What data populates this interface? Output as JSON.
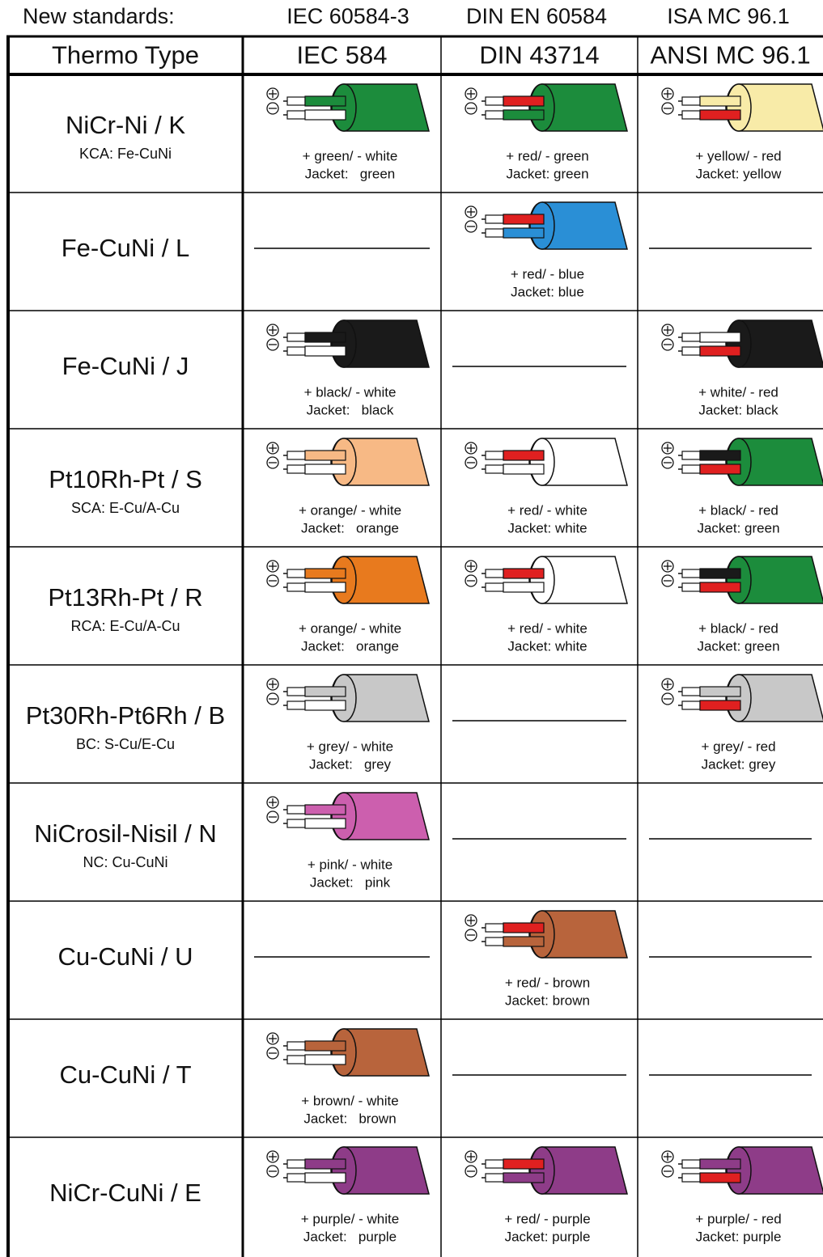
{
  "standards": [
    "New standards:",
    "IEC 60584-3",
    "DIN EN 60584",
    "ISA MC 96.1"
  ],
  "header": [
    "Thermo Type",
    "IEC 584",
    "DIN 43714",
    "ANSI MC 96.1"
  ],
  "rows": [
    {
      "label": "NiCr-Ni / K",
      "sub": "KCA: Fe-CuNi",
      "cells": [
        {
          "wires": "+ green/ - white",
          "jacket": "Jacket:   green",
          "colors": [
            "#1c8c3c",
            "#ffffff",
            "#1c8c3c"
          ]
        },
        {
          "wires": "+ red/ - green",
          "jacket": "Jacket: green",
          "colors": [
            "#e02020",
            "#1c8c3c",
            "#1c8c3c"
          ]
        },
        {
          "wires": "+ yellow/ - red",
          "jacket": "Jacket: yellow",
          "colors": [
            "#f8eba8",
            "#e02020",
            "#f8eba8"
          ]
        }
      ]
    },
    {
      "label": "Fe-CuNi / L",
      "cells": [
        null,
        {
          "wires": "+ red/ - blue",
          "jacket": "Jacket: blue",
          "colors": [
            "#e02020",
            "#2a8fd6",
            "#2a8fd6"
          ]
        },
        null
      ]
    },
    {
      "label": "Fe-CuNi / J",
      "cells": [
        {
          "wires": "+ black/ - white",
          "jacket": "Jacket:   black",
          "colors": [
            "#1a1a1a",
            "#ffffff",
            "#1a1a1a"
          ]
        },
        null,
        {
          "wires": "+ white/ - red",
          "jacket": "Jacket: black",
          "colors": [
            "#ffffff",
            "#e02020",
            "#1a1a1a"
          ]
        }
      ]
    },
    {
      "label": "Pt10Rh-Pt / S",
      "sub": "SCA: E-Cu/A-Cu",
      "cells": [
        {
          "wires": "+ orange/ - white",
          "jacket": "Jacket:   orange",
          "colors": [
            "#f7b985",
            "#ffffff",
            "#f7b985"
          ]
        },
        {
          "wires": "+ red/ - white",
          "jacket": "Jacket: white",
          "colors": [
            "#e02020",
            "#ffffff",
            "#ffffff"
          ]
        },
        {
          "wires": "+ black/ - red",
          "jacket": "Jacket: green",
          "colors": [
            "#1a1a1a",
            "#e02020",
            "#1c8c3c"
          ]
        }
      ]
    },
    {
      "label": "Pt13Rh-Pt / R",
      "sub": "RCA: E-Cu/A-Cu",
      "cells": [
        {
          "wires": "+ orange/ - white",
          "jacket": "Jacket:   orange",
          "colors": [
            "#e87a1e",
            "#ffffff",
            "#e87a1e"
          ]
        },
        {
          "wires": "+ red/ - white",
          "jacket": "Jacket: white",
          "colors": [
            "#e02020",
            "#ffffff",
            "#ffffff"
          ]
        },
        {
          "wires": "+ black/ - red",
          "jacket": "Jacket: green",
          "colors": [
            "#1a1a1a",
            "#e02020",
            "#1c8c3c"
          ]
        }
      ]
    },
    {
      "label": "Pt30Rh-Pt6Rh / B",
      "sub": "BC: S-Cu/E-Cu",
      "cells": [
        {
          "wires": "+ grey/ - white",
          "jacket": "Jacket:   grey",
          "colors": [
            "#c8c8c8",
            "#ffffff",
            "#c8c8c8"
          ]
        },
        null,
        {
          "wires": "+ grey/ - red",
          "jacket": "Jacket: grey",
          "colors": [
            "#c8c8c8",
            "#e02020",
            "#c8c8c8"
          ]
        }
      ]
    },
    {
      "label": "NiCrosil-Nisil / N",
      "sub": "NC: Cu-CuNi",
      "cells": [
        {
          "wires": "+ pink/ - white",
          "jacket": "Jacket:   pink",
          "colors": [
            "#cc5fae",
            "#ffffff",
            "#cc5fae"
          ]
        },
        null,
        null
      ]
    },
    {
      "label": "Cu-CuNi / U",
      "cells": [
        null,
        {
          "wires": "+ red/ - brown",
          "jacket": "Jacket: brown",
          "colors": [
            "#e02020",
            "#b8643c",
            "#b8643c"
          ]
        },
        null
      ]
    },
    {
      "label": "Cu-CuNi / T",
      "cells": [
        {
          "wires": "+ brown/ - white",
          "jacket": "Jacket:   brown",
          "colors": [
            "#b8643c",
            "#ffffff",
            "#b8643c"
          ]
        },
        null,
        null
      ]
    },
    {
      "label": "NiCr-CuNi / E",
      "cells": [
        {
          "wires": "+ purple/ - white",
          "jacket": "Jacket:   purple",
          "colors": [
            "#8e3c88",
            "#ffffff",
            "#8e3c88"
          ]
        },
        {
          "wires": "+ red/ - purple",
          "jacket": "Jacket: purple",
          "colors": [
            "#e02020",
            "#8e3c88",
            "#8e3c88"
          ]
        },
        {
          "wires": "+ purple/ - red",
          "jacket": "Jacket: purple",
          "colors": [
            "#8e3c88",
            "#e02020",
            "#8e3c88"
          ]
        }
      ]
    }
  ]
}
